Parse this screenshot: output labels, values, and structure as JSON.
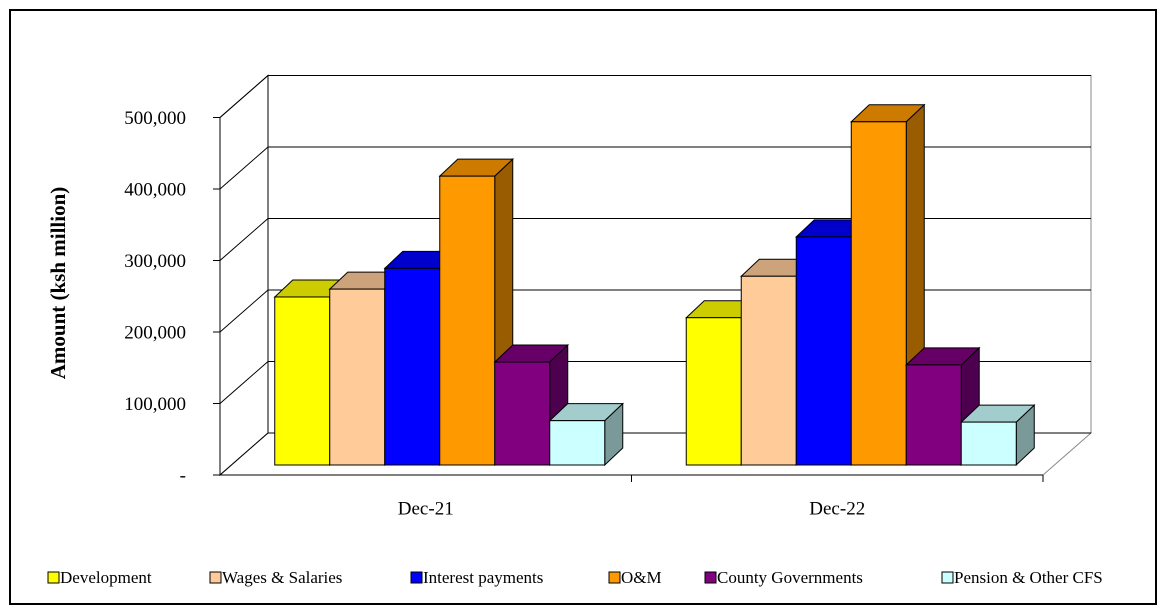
{
  "chart_data": {
    "type": "bar3d",
    "y_label": "Amount  (ksh million)",
    "categories": [
      "Dec-21",
      "Dec-22"
    ],
    "series": [
      {
        "name": "Development",
        "color": "#ffff00",
        "values": [
          235000,
          206000
        ]
      },
      {
        "name": "Wages & Salaries",
        "color": "#ffcc99",
        "values": [
          246000,
          264000
        ]
      },
      {
        "name": "Interest payments",
        "color": "#0000ff",
        "values": [
          275000,
          319000
        ]
      },
      {
        "name": "O&M",
        "color": "#ff9900",
        "values": [
          404000,
          480000
        ]
      },
      {
        "name": "County Governments",
        "color": "#800080",
        "values": [
          144000,
          140000
        ]
      },
      {
        "name": "Pension & Other CFS",
        "color": "#ccffff",
        "values": [
          62000,
          60000
        ]
      }
    ],
    "ylim": [
      0,
      500000
    ],
    "yticks": [
      {
        "value": 0,
        "label": "-"
      },
      {
        "value": 100000,
        "label": "100,000"
      },
      {
        "value": 200000,
        "label": "200,000"
      },
      {
        "value": 300000,
        "label": "300,000"
      },
      {
        "value": 400000,
        "label": "400,000"
      },
      {
        "value": 500000,
        "label": "500,000"
      }
    ],
    "grid": true
  }
}
